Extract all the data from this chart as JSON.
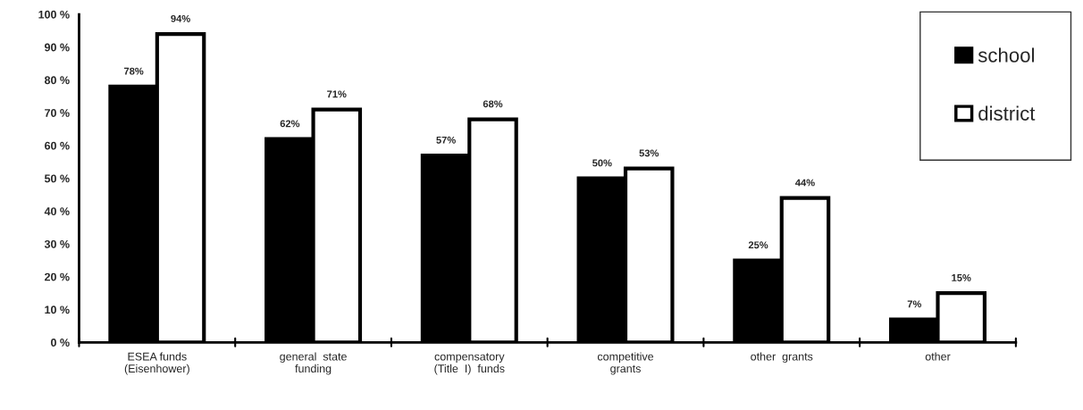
{
  "chart_data": {
    "type": "bar",
    "categories": [
      "ESEA funds\n(Eisenhower)",
      "general  state\nfunding",
      "compensatory\n(Title  I)  funds",
      "competitive\ngrants",
      "other  grants",
      "other"
    ],
    "series": [
      {
        "name": "school",
        "color": "#000000",
        "values": [
          78,
          62,
          57,
          50,
          25,
          7
        ],
        "value_labels": [
          "78%",
          "62%",
          "57%",
          "50%",
          "25%",
          "7%"
        ]
      },
      {
        "name": "district",
        "color": "#ffffff",
        "values": [
          94,
          71,
          68,
          53,
          44,
          15
        ],
        "value_labels": [
          "94%",
          "71%",
          "68%",
          "53%",
          "44%",
          "15%"
        ]
      }
    ],
    "ylim": [
      0,
      100
    ],
    "yticks": [
      {
        "value": 0,
        "label": "0 %"
      },
      {
        "value": 10,
        "label": "10 %"
      },
      {
        "value": 20,
        "label": "20 %"
      },
      {
        "value": 30,
        "label": "30 %"
      },
      {
        "value": 40,
        "label": "40 %"
      },
      {
        "value": 50,
        "label": "50 %"
      },
      {
        "value": 60,
        "label": "60 %"
      },
      {
        "value": 70,
        "label": "70 %"
      },
      {
        "value": 80,
        "label": "80 %"
      },
      {
        "value": 90,
        "label": "90 %"
      },
      {
        "value": 100,
        "label": "100 %"
      }
    ],
    "grid": false,
    "legend": "top right"
  }
}
